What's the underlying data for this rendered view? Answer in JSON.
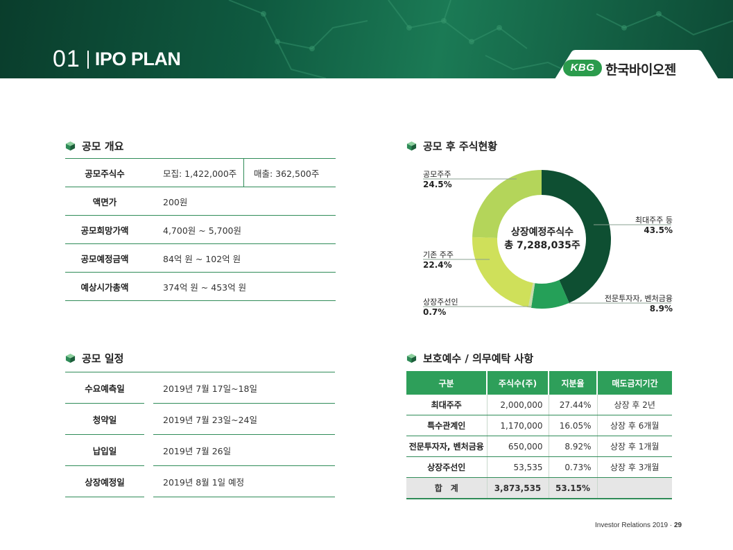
{
  "header": {
    "section_number": "01",
    "title": "IPO PLAN"
  },
  "logo": {
    "badge": "KBG",
    "company": "한국바이오젠"
  },
  "offering": {
    "title": "공모 개요",
    "rows": [
      {
        "label": "공모주식수",
        "value": "모집: 1,422,000주",
        "value2": "매출: 362,500주"
      },
      {
        "label": "액면가",
        "value": "200원"
      },
      {
        "label": "공모희망가액",
        "value": "4,700원 ~ 5,700원"
      },
      {
        "label": "공모예정금액",
        "value": "84억 원 ~ 102억 원"
      },
      {
        "label": "예상시가총액",
        "value": "374억 원 ~ 453억 원"
      }
    ]
  },
  "schedule": {
    "title": "공모 일정",
    "rows": [
      {
        "label": "수요예측일",
        "value": "2019년 7월 17일~18일"
      },
      {
        "label": "청약일",
        "value": "2019년 7월 23일~24일"
      },
      {
        "label": "납입일",
        "value": "2019년 7월 26일"
      },
      {
        "label": "상장예정일",
        "value": "2019년 8월 1일 예정"
      }
    ]
  },
  "shareholding": {
    "title": "공모 후 주식현황",
    "center_label_1": "상장예정주식수",
    "center_label_2": "총 7,288,035주"
  },
  "chart_data": {
    "type": "pie",
    "title": "공모 후 주식현황",
    "slices": [
      {
        "label": "최대주주 등",
        "value": 43.5,
        "value_label": "43.5%",
        "color": "#0e4f32"
      },
      {
        "label": "전문투자자, 벤처금융",
        "value": 8.9,
        "value_label": "8.9%",
        "color": "#25a058"
      },
      {
        "label": "상장주선인",
        "value": 0.7,
        "value_label": "0.7%",
        "color": "#c9dcae"
      },
      {
        "label": "기존 주주",
        "value": 22.4,
        "value_label": "22.4%",
        "color": "#cfe05a"
      },
      {
        "label": "공모주주",
        "value": 24.5,
        "value_label": "24.5%",
        "color": "#b4d55a"
      }
    ]
  },
  "lockup": {
    "title": "보호예수 / 의무예탁 사항",
    "headers": [
      "구분",
      "주식수(주)",
      "지분율",
      "매도금지기간"
    ],
    "rows": [
      {
        "name": "최대주주",
        "shares": "2,000,000",
        "ratio": "27.44%",
        "period": "상장 후 2년"
      },
      {
        "name": "특수관계인",
        "shares": "1,170,000",
        "ratio": "16.05%",
        "period": "상장 후 6개월"
      },
      {
        "name": "전문투자자, 벤처금융",
        "shares": "650,000",
        "ratio": "8.92%",
        "period": "상장 후 1개월"
      },
      {
        "name": "상장주선인",
        "shares": "53,535",
        "ratio": "0.73%",
        "period": "상장 후 3개월"
      }
    ],
    "total": {
      "name": "합　계",
      "shares": "3,873,535",
      "ratio": "53.15%",
      "period": ""
    }
  },
  "footer": {
    "text": "Investor Relations 2019 · ",
    "page": "29"
  },
  "colors": {
    "brand_green": "#2e9f5a",
    "dark_green": "#0a3d2c",
    "table_line": "#2e8b57"
  }
}
